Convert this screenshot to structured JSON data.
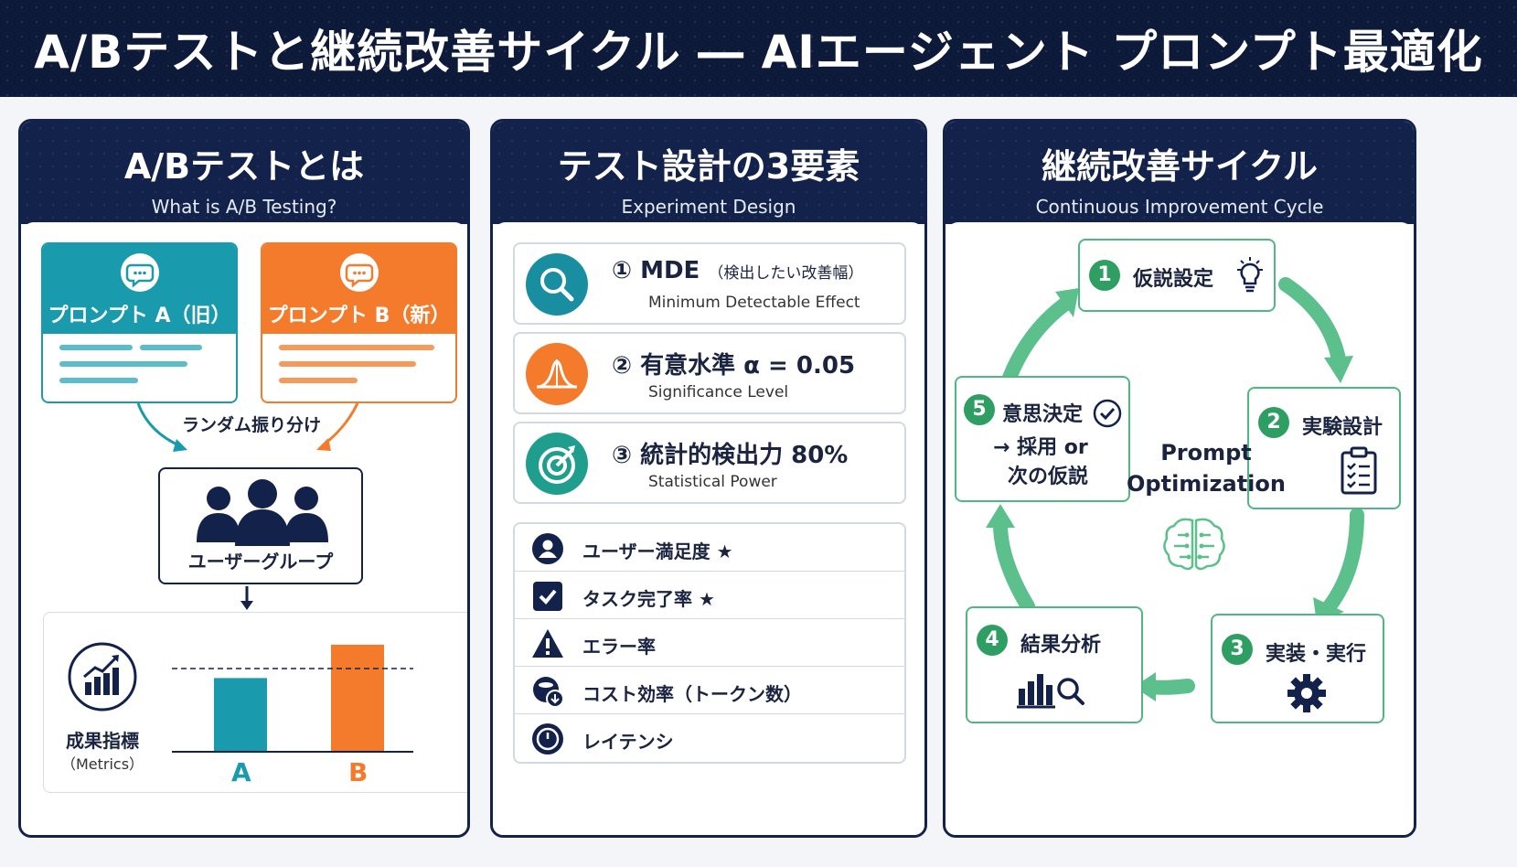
{
  "title": "A/Bテストと継続改善サイクル ― AIエージェント プロンプト最適化",
  "colors": {
    "navy": "#13224a",
    "teal": "#1a9aad",
    "orange": "#f37b2b",
    "green": "#2e9e62",
    "lightgreen": "#4fb882"
  },
  "panel1": {
    "title": "A/Bテストとは",
    "subtitle": "What is A/B Testing?",
    "prompt_a": "プロンプト A（旧）",
    "prompt_b": "プロンプト B（新）",
    "random_split": "ランダム振り分け",
    "user_group": "ユーザーグループ",
    "metrics_label": "成果指標",
    "metrics_sub": "（Metrics）",
    "chart_data": {
      "type": "bar",
      "categories": [
        "A",
        "B"
      ],
      "values": [
        0.62,
        0.9
      ],
      "baseline": 0.7,
      "colors": [
        "#1a9aad",
        "#f37b2b"
      ]
    }
  },
  "panel2": {
    "title": "テスト設計の3要素",
    "subtitle": "Experiment Design",
    "elements": [
      {
        "num": "①",
        "title": "MDE",
        "note": "（検出したい改善幅）",
        "sub": "Minimum Detectable Effect",
        "icon": "search-icon",
        "color": "#1a8ea1"
      },
      {
        "num": "②",
        "title": "有意水準 α = 0.05",
        "note": "",
        "sub": "Significance Level",
        "icon": "bell-curve-icon",
        "color": "#f37b2b"
      },
      {
        "num": "③",
        "title": "統計的検出力 80%",
        "note": "",
        "sub": "Statistical Power",
        "icon": "target-icon",
        "color": "#1f9e8e"
      }
    ],
    "metrics": [
      {
        "label": "ユーザー満足度 ★",
        "icon": "user-icon"
      },
      {
        "label": "タスク完了率 ★",
        "icon": "checkbox-icon"
      },
      {
        "label": "エラー率",
        "icon": "warning-icon"
      },
      {
        "label": "コスト効率（トークン数）",
        "icon": "coins-icon"
      },
      {
        "label": "レイテンシ",
        "icon": "clock-icon"
      }
    ]
  },
  "panel3": {
    "title": "継続改善サイクル",
    "subtitle": "Continuous Improvement Cycle",
    "center_line1": "Prompt",
    "center_line2": "Optimization",
    "steps": [
      {
        "num": "1",
        "label": "仮説設定",
        "icon": "lightbulb-icon"
      },
      {
        "num": "2",
        "label": "実験設計",
        "icon": "clipboard-icon"
      },
      {
        "num": "3",
        "label": "実装・実行",
        "icon": "gear-icon"
      },
      {
        "num": "4",
        "label": "結果分析",
        "icon": "analysis-icon"
      },
      {
        "num": "5",
        "label": "意思決定",
        "line2": "→ 採用 or",
        "line3": "次の仮説",
        "icon": "check-circle-icon"
      }
    ]
  }
}
